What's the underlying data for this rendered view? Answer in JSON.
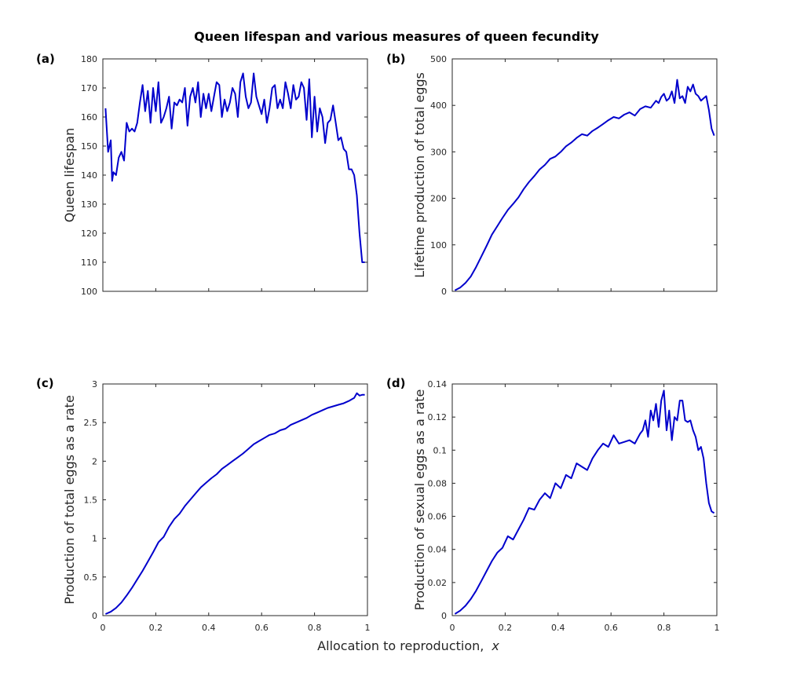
{
  "figure": {
    "title": "Queen lifespan and various measures of queen fecundity",
    "shared_xlabel_prefix": "Allocation to reproduction,",
    "shared_xlabel_var": "x"
  },
  "chart_data": [
    {
      "type": "line",
      "panel": "(a)",
      "title": "",
      "xlabel": "",
      "ylabel": "Queen lifespan",
      "xlim": [
        0,
        1
      ],
      "ylim": [
        100,
        180
      ],
      "xticks": [
        0,
        0.2,
        0.4,
        0.6,
        0.8,
        1
      ],
      "xtick_labels": [],
      "yticks": [
        100,
        110,
        120,
        130,
        140,
        150,
        160,
        170,
        180
      ],
      "ytick_labels": [
        "100",
        "110",
        "120",
        "130",
        "140",
        "150",
        "160",
        "170",
        "180"
      ],
      "grid": false,
      "color": "#0000cc",
      "series": [
        {
          "x": [
            0.01,
            0.02,
            0.03,
            0.035,
            0.04,
            0.05,
            0.06,
            0.07,
            0.08,
            0.09,
            0.1,
            0.11,
            0.12,
            0.13,
            0.14,
            0.15,
            0.16,
            0.17,
            0.18,
            0.19,
            0.2,
            0.21,
            0.22,
            0.23,
            0.24,
            0.25,
            0.26,
            0.27,
            0.28,
            0.29,
            0.3,
            0.31,
            0.32,
            0.33,
            0.34,
            0.35,
            0.36,
            0.37,
            0.38,
            0.39,
            0.4,
            0.41,
            0.42,
            0.43,
            0.44,
            0.45,
            0.46,
            0.47,
            0.48,
            0.49,
            0.5,
            0.51,
            0.52,
            0.53,
            0.54,
            0.55,
            0.56,
            0.57,
            0.58,
            0.59,
            0.6,
            0.61,
            0.62,
            0.63,
            0.64,
            0.65,
            0.66,
            0.67,
            0.68,
            0.69,
            0.7,
            0.71,
            0.72,
            0.73,
            0.74,
            0.75,
            0.76,
            0.77,
            0.78,
            0.79,
            0.8,
            0.81,
            0.82,
            0.83,
            0.84,
            0.85,
            0.86,
            0.87,
            0.88,
            0.89,
            0.9,
            0.91,
            0.92,
            0.93,
            0.94,
            0.95,
            0.96,
            0.97,
            0.98,
            0.99
          ],
          "y": [
            163,
            148,
            152,
            138,
            141,
            140,
            146,
            148,
            145,
            158,
            155,
            156,
            155,
            158,
            165,
            171,
            162,
            169,
            158,
            170,
            162,
            172,
            158,
            160,
            163,
            167,
            156,
            165,
            164,
            166,
            165,
            170,
            157,
            167,
            170,
            165,
            172,
            160,
            168,
            163,
            168,
            162,
            167,
            172,
            171,
            160,
            166,
            162,
            165,
            170,
            168,
            160,
            172,
            175,
            167,
            163,
            165,
            175,
            167,
            164,
            161,
            166,
            158,
            163,
            170,
            171,
            163,
            166,
            163,
            172,
            168,
            163,
            171,
            166,
            167,
            172,
            170,
            159,
            173,
            153,
            167,
            155,
            163,
            160,
            151,
            158,
            159,
            164,
            158,
            152,
            153,
            149,
            148,
            142,
            142,
            140,
            133,
            120,
            110,
            110
          ]
        }
      ]
    },
    {
      "type": "line",
      "panel": "(b)",
      "title": "",
      "xlabel": "",
      "ylabel": "Lifetime production of total eggs",
      "xlim": [
        0,
        1
      ],
      "ylim": [
        0,
        500
      ],
      "xticks": [
        0,
        0.2,
        0.4,
        0.6,
        0.8,
        1
      ],
      "xtick_labels": [],
      "yticks": [
        0,
        100,
        200,
        300,
        400,
        500
      ],
      "ytick_labels": [
        "0",
        "100",
        "200",
        "300",
        "400",
        "500"
      ],
      "grid": false,
      "color": "#0000cc",
      "series": [
        {
          "x": [
            0.01,
            0.03,
            0.05,
            0.07,
            0.09,
            0.11,
            0.13,
            0.15,
            0.17,
            0.19,
            0.21,
            0.23,
            0.25,
            0.27,
            0.29,
            0.31,
            0.33,
            0.35,
            0.37,
            0.39,
            0.41,
            0.43,
            0.45,
            0.47,
            0.49,
            0.51,
            0.53,
            0.55,
            0.57,
            0.59,
            0.61,
            0.63,
            0.65,
            0.67,
            0.69,
            0.71,
            0.73,
            0.75,
            0.77,
            0.78,
            0.79,
            0.8,
            0.81,
            0.82,
            0.83,
            0.84,
            0.85,
            0.86,
            0.87,
            0.88,
            0.89,
            0.9,
            0.91,
            0.92,
            0.93,
            0.94,
            0.95,
            0.96,
            0.97,
            0.98,
            0.99
          ],
          "y": [
            2,
            8,
            18,
            32,
            52,
            75,
            98,
            122,
            140,
            158,
            175,
            188,
            202,
            220,
            235,
            248,
            262,
            272,
            285,
            290,
            300,
            312,
            320,
            330,
            338,
            335,
            345,
            352,
            360,
            368,
            375,
            372,
            380,
            385,
            378,
            392,
            398,
            395,
            410,
            405,
            418,
            425,
            410,
            415,
            430,
            405,
            455,
            415,
            420,
            405,
            440,
            430,
            445,
            425,
            420,
            410,
            415,
            420,
            390,
            350,
            335
          ]
        }
      ]
    },
    {
      "type": "line",
      "panel": "(c)",
      "title": "",
      "xlabel": "",
      "ylabel": "Production of total eggs as a rate",
      "xlim": [
        0,
        1
      ],
      "ylim": [
        0,
        3
      ],
      "xticks": [
        0,
        0.2,
        0.4,
        0.6,
        0.8,
        1
      ],
      "xtick_labels": [
        "0",
        "0.2",
        "0.4",
        "0.6",
        "0.8",
        "1"
      ],
      "yticks": [
        0,
        0.5,
        1,
        1.5,
        2,
        2.5,
        3
      ],
      "ytick_labels": [
        "0",
        "0.5",
        "1",
        "1.5",
        "2",
        "2.5",
        "3"
      ],
      "grid": false,
      "color": "#0000cc",
      "series": [
        {
          "x": [
            0.01,
            0.03,
            0.05,
            0.07,
            0.09,
            0.11,
            0.13,
            0.15,
            0.17,
            0.19,
            0.21,
            0.23,
            0.25,
            0.27,
            0.29,
            0.31,
            0.33,
            0.35,
            0.37,
            0.39,
            0.41,
            0.43,
            0.45,
            0.47,
            0.49,
            0.51,
            0.53,
            0.55,
            0.57,
            0.59,
            0.61,
            0.63,
            0.65,
            0.67,
            0.69,
            0.71,
            0.73,
            0.75,
            0.77,
            0.79,
            0.81,
            0.83,
            0.85,
            0.87,
            0.89,
            0.91,
            0.93,
            0.95,
            0.96,
            0.97,
            0.98,
            0.99
          ],
          "y": [
            0.02,
            0.05,
            0.1,
            0.17,
            0.26,
            0.36,
            0.47,
            0.58,
            0.7,
            0.82,
            0.95,
            1.02,
            1.15,
            1.25,
            1.32,
            1.42,
            1.5,
            1.58,
            1.66,
            1.72,
            1.78,
            1.83,
            1.9,
            1.95,
            2.0,
            2.05,
            2.1,
            2.16,
            2.22,
            2.26,
            2.3,
            2.34,
            2.36,
            2.4,
            2.42,
            2.47,
            2.5,
            2.53,
            2.56,
            2.6,
            2.63,
            2.66,
            2.69,
            2.71,
            2.73,
            2.75,
            2.78,
            2.82,
            2.88,
            2.85,
            2.86,
            2.86
          ]
        }
      ]
    },
    {
      "type": "line",
      "panel": "(d)",
      "title": "",
      "xlabel": "",
      "ylabel": "Production of sexual eggs as a rate",
      "xlim": [
        0,
        1
      ],
      "ylim": [
        0,
        0.14
      ],
      "xticks": [
        0,
        0.2,
        0.4,
        0.6,
        0.8,
        1
      ],
      "xtick_labels": [
        "0",
        "0.2",
        "0.4",
        "0.6",
        "0.8",
        "1"
      ],
      "yticks": [
        0,
        0.02,
        0.04,
        0.06,
        0.08,
        0.1,
        0.12,
        0.14
      ],
      "ytick_labels": [
        "0",
        "0.02",
        "0.04",
        "0.06",
        "0.08",
        "0.1",
        "0.12",
        "0.14"
      ],
      "grid": false,
      "color": "#0000cc",
      "series": [
        {
          "x": [
            0.01,
            0.03,
            0.05,
            0.07,
            0.09,
            0.11,
            0.13,
            0.15,
            0.17,
            0.19,
            0.21,
            0.23,
            0.25,
            0.27,
            0.29,
            0.31,
            0.33,
            0.35,
            0.37,
            0.39,
            0.41,
            0.43,
            0.45,
            0.47,
            0.49,
            0.51,
            0.53,
            0.55,
            0.57,
            0.59,
            0.61,
            0.63,
            0.65,
            0.67,
            0.69,
            0.71,
            0.72,
            0.73,
            0.74,
            0.75,
            0.76,
            0.77,
            0.78,
            0.79,
            0.8,
            0.81,
            0.82,
            0.83,
            0.84,
            0.85,
            0.86,
            0.87,
            0.88,
            0.89,
            0.9,
            0.91,
            0.92,
            0.93,
            0.94,
            0.95,
            0.96,
            0.97,
            0.98,
            0.99
          ],
          "y": [
            0.001,
            0.003,
            0.006,
            0.01,
            0.015,
            0.021,
            0.027,
            0.033,
            0.038,
            0.041,
            0.048,
            0.046,
            0.052,
            0.058,
            0.065,
            0.064,
            0.07,
            0.074,
            0.071,
            0.08,
            0.077,
            0.085,
            0.083,
            0.092,
            0.09,
            0.088,
            0.095,
            0.1,
            0.104,
            0.102,
            0.109,
            0.104,
            0.105,
            0.106,
            0.104,
            0.11,
            0.112,
            0.118,
            0.108,
            0.124,
            0.118,
            0.128,
            0.114,
            0.13,
            0.136,
            0.112,
            0.124,
            0.106,
            0.12,
            0.118,
            0.13,
            0.13,
            0.118,
            0.117,
            0.118,
            0.112,
            0.108,
            0.1,
            0.102,
            0.095,
            0.08,
            0.068,
            0.063,
            0.062
          ]
        }
      ]
    }
  ]
}
